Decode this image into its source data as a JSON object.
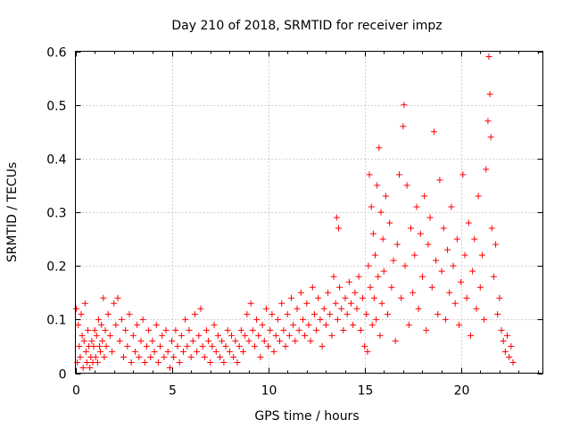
{
  "chart_data": {
    "type": "scatter",
    "title": "Day 210 of 2018, SRMTID for receiver impz",
    "xlabel": "GPS time / hours",
    "ylabel": "SRMTID / TECUs",
    "xlim": [
      0,
      24.25
    ],
    "ylim": [
      0,
      0.6
    ],
    "xticks": [
      0,
      5,
      10,
      15,
      20
    ],
    "xtick_labels": [
      "0",
      "5",
      "10",
      "15",
      "20"
    ],
    "yticks": [
      0,
      0.1,
      0.2,
      0.3,
      0.4,
      0.5,
      0.6
    ],
    "ytick_labels": [
      "0",
      "0.1",
      "0.2",
      "0.3",
      "0.4",
      "0.5",
      "0.6"
    ],
    "grid": true,
    "marker": "+",
    "color": "#ff0000",
    "series": [
      {
        "name": "SRMTID",
        "points": [
          [
            0.05,
            0.12
          ],
          [
            0.1,
            0.02
          ],
          [
            0.15,
            0.09
          ],
          [
            0.2,
            0.05
          ],
          [
            0.25,
            0.03
          ],
          [
            0.3,
            0.11
          ],
          [
            0.35,
            0.07
          ],
          [
            0.4,
            0.01
          ],
          [
            0.45,
            0.06
          ],
          [
            0.5,
            0.13
          ],
          [
            0.55,
            0.04
          ],
          [
            0.6,
            0.02
          ],
          [
            0.65,
            0.08
          ],
          [
            0.7,
            0.05
          ],
          [
            0.75,
            0.01
          ],
          [
            0.8,
            0.03
          ],
          [
            0.85,
            0.06
          ],
          [
            0.9,
            0.02
          ],
          [
            0.95,
            0.05
          ],
          [
            1.0,
            0.08
          ],
          [
            1.05,
            0.03
          ],
          [
            1.1,
            0.07
          ],
          [
            1.15,
            0.02
          ],
          [
            1.2,
            0.1
          ],
          [
            1.25,
            0.05
          ],
          [
            1.3,
            0.04
          ],
          [
            1.35,
            0.09
          ],
          [
            1.4,
            0.06
          ],
          [
            1.45,
            0.14
          ],
          [
            1.5,
            0.03
          ],
          [
            1.55,
            0.08
          ],
          [
            1.6,
            0.05
          ],
          [
            1.7,
            0.11
          ],
          [
            1.8,
            0.07
          ],
          [
            1.9,
            0.04
          ],
          [
            2.0,
            0.13
          ],
          [
            2.1,
            0.09
          ],
          [
            2.2,
            0.14
          ],
          [
            2.3,
            0.06
          ],
          [
            2.4,
            0.1
          ],
          [
            2.5,
            0.03
          ],
          [
            2.6,
            0.08
          ],
          [
            2.7,
            0.05
          ],
          [
            2.8,
            0.11
          ],
          [
            2.9,
            0.02
          ],
          [
            3.0,
            0.07
          ],
          [
            3.1,
            0.04
          ],
          [
            3.2,
            0.09
          ],
          [
            3.3,
            0.03
          ],
          [
            3.4,
            0.06
          ],
          [
            3.5,
            0.1
          ],
          [
            3.6,
            0.02
          ],
          [
            3.7,
            0.05
          ],
          [
            3.8,
            0.08
          ],
          [
            3.9,
            0.03
          ],
          [
            4.0,
            0.06
          ],
          [
            4.1,
            0.04
          ],
          [
            4.2,
            0.09
          ],
          [
            4.3,
            0.02
          ],
          [
            4.4,
            0.05
          ],
          [
            4.5,
            0.07
          ],
          [
            4.6,
            0.03
          ],
          [
            4.7,
            0.08
          ],
          [
            4.8,
            0.04
          ],
          [
            4.9,
            0.01
          ],
          [
            5.0,
            0.06
          ],
          [
            5.1,
            0.03
          ],
          [
            5.2,
            0.08
          ],
          [
            5.3,
            0.05
          ],
          [
            5.4,
            0.02
          ],
          [
            5.5,
            0.07
          ],
          [
            5.6,
            0.04
          ],
          [
            5.7,
            0.1
          ],
          [
            5.8,
            0.05
          ],
          [
            5.9,
            0.08
          ],
          [
            6.0,
            0.03
          ],
          [
            6.1,
            0.06
          ],
          [
            6.2,
            0.11
          ],
          [
            6.3,
            0.04
          ],
          [
            6.4,
            0.07
          ],
          [
            6.5,
            0.12
          ],
          [
            6.6,
            0.05
          ],
          [
            6.7,
            0.03
          ],
          [
            6.8,
            0.08
          ],
          [
            6.9,
            0.06
          ],
          [
            7.0,
            0.02
          ],
          [
            7.1,
            0.05
          ],
          [
            7.2,
            0.09
          ],
          [
            7.3,
            0.04
          ],
          [
            7.4,
            0.07
          ],
          [
            7.5,
            0.03
          ],
          [
            7.6,
            0.06
          ],
          [
            7.7,
            0.02
          ],
          [
            7.8,
            0.05
          ],
          [
            7.9,
            0.08
          ],
          [
            8.0,
            0.04
          ],
          [
            8.1,
            0.07
          ],
          [
            8.2,
            0.03
          ],
          [
            8.3,
            0.06
          ],
          [
            8.4,
            0.02
          ],
          [
            8.5,
            0.05
          ],
          [
            8.6,
            0.08
          ],
          [
            8.7,
            0.04
          ],
          [
            8.8,
            0.07
          ],
          [
            8.9,
            0.11
          ],
          [
            9.0,
            0.06
          ],
          [
            9.1,
            0.13
          ],
          [
            9.2,
            0.08
          ],
          [
            9.3,
            0.05
          ],
          [
            9.4,
            0.1
          ],
          [
            9.5,
            0.07
          ],
          [
            9.6,
            0.03
          ],
          [
            9.7,
            0.09
          ],
          [
            9.8,
            0.06
          ],
          [
            9.9,
            0.12
          ],
          [
            10.0,
            0.05
          ],
          [
            10.1,
            0.08
          ],
          [
            10.2,
            0.11
          ],
          [
            10.3,
            0.04
          ],
          [
            10.4,
            0.07
          ],
          [
            10.5,
            0.1
          ],
          [
            10.6,
            0.06
          ],
          [
            10.7,
            0.13
          ],
          [
            10.8,
            0.08
          ],
          [
            10.9,
            0.05
          ],
          [
            11.0,
            0.11
          ],
          [
            11.1,
            0.07
          ],
          [
            11.2,
            0.14
          ],
          [
            11.3,
            0.09
          ],
          [
            11.4,
            0.06
          ],
          [
            11.5,
            0.12
          ],
          [
            11.6,
            0.08
          ],
          [
            11.7,
            0.15
          ],
          [
            11.8,
            0.1
          ],
          [
            11.9,
            0.07
          ],
          [
            12.0,
            0.13
          ],
          [
            12.1,
            0.09
          ],
          [
            12.2,
            0.06
          ],
          [
            12.3,
            0.16
          ],
          [
            12.4,
            0.11
          ],
          [
            12.5,
            0.08
          ],
          [
            12.6,
            0.14
          ],
          [
            12.7,
            0.1
          ],
          [
            12.8,
            0.05
          ],
          [
            12.9,
            0.12
          ],
          [
            13.0,
            0.09
          ],
          [
            13.1,
            0.15
          ],
          [
            13.2,
            0.11
          ],
          [
            13.3,
            0.07
          ],
          [
            13.4,
            0.18
          ],
          [
            13.5,
            0.13
          ],
          [
            13.55,
            0.29
          ],
          [
            13.6,
            0.1
          ],
          [
            13.65,
            0.27
          ],
          [
            13.7,
            0.16
          ],
          [
            13.8,
            0.12
          ],
          [
            13.9,
            0.08
          ],
          [
            14.0,
            0.14
          ],
          [
            14.1,
            0.11
          ],
          [
            14.2,
            0.17
          ],
          [
            14.3,
            0.13
          ],
          [
            14.4,
            0.09
          ],
          [
            14.5,
            0.15
          ],
          [
            14.6,
            0.12
          ],
          [
            14.7,
            0.18
          ],
          [
            14.8,
            0.08
          ],
          [
            14.9,
            0.14
          ],
          [
            15.0,
            0.05
          ],
          [
            15.1,
            0.11
          ],
          [
            15.15,
            0.04
          ],
          [
            15.2,
            0.2
          ],
          [
            15.25,
            0.37
          ],
          [
            15.3,
            0.16
          ],
          [
            15.35,
            0.31
          ],
          [
            15.4,
            0.09
          ],
          [
            15.45,
            0.26
          ],
          [
            15.5,
            0.14
          ],
          [
            15.55,
            0.22
          ],
          [
            15.6,
            0.1
          ],
          [
            15.65,
            0.35
          ],
          [
            15.7,
            0.18
          ],
          [
            15.75,
            0.42
          ],
          [
            15.8,
            0.07
          ],
          [
            15.85,
            0.3
          ],
          [
            15.9,
            0.13
          ],
          [
            15.95,
            0.25
          ],
          [
            16.0,
            0.19
          ],
          [
            16.1,
            0.33
          ],
          [
            16.2,
            0.11
          ],
          [
            16.3,
            0.28
          ],
          [
            16.4,
            0.16
          ],
          [
            16.5,
            0.21
          ],
          [
            16.6,
            0.06
          ],
          [
            16.7,
            0.24
          ],
          [
            16.8,
            0.37
          ],
          [
            16.9,
            0.14
          ],
          [
            17.0,
            0.46
          ],
          [
            17.05,
            0.5
          ],
          [
            17.1,
            0.2
          ],
          [
            17.2,
            0.35
          ],
          [
            17.3,
            0.09
          ],
          [
            17.4,
            0.27
          ],
          [
            17.5,
            0.15
          ],
          [
            17.6,
            0.22
          ],
          [
            17.7,
            0.31
          ],
          [
            17.8,
            0.12
          ],
          [
            17.9,
            0.26
          ],
          [
            18.0,
            0.18
          ],
          [
            18.1,
            0.33
          ],
          [
            18.2,
            0.08
          ],
          [
            18.3,
            0.24
          ],
          [
            18.4,
            0.29
          ],
          [
            18.5,
            0.16
          ],
          [
            18.6,
            0.45
          ],
          [
            18.7,
            0.21
          ],
          [
            18.8,
            0.11
          ],
          [
            18.9,
            0.36
          ],
          [
            19.0,
            0.19
          ],
          [
            19.1,
            0.27
          ],
          [
            19.2,
            0.1
          ],
          [
            19.3,
            0.23
          ],
          [
            19.4,
            0.15
          ],
          [
            19.5,
            0.31
          ],
          [
            19.6,
            0.2
          ],
          [
            19.7,
            0.13
          ],
          [
            19.8,
            0.25
          ],
          [
            19.9,
            0.09
          ],
          [
            20.0,
            0.17
          ],
          [
            20.1,
            0.37
          ],
          [
            20.2,
            0.22
          ],
          [
            20.3,
            0.14
          ],
          [
            20.4,
            0.28
          ],
          [
            20.5,
            0.07
          ],
          [
            20.6,
            0.19
          ],
          [
            20.7,
            0.25
          ],
          [
            20.8,
            0.12
          ],
          [
            20.9,
            0.33
          ],
          [
            21.0,
            0.16
          ],
          [
            21.1,
            0.22
          ],
          [
            21.2,
            0.1
          ],
          [
            21.3,
            0.38
          ],
          [
            21.4,
            0.47
          ],
          [
            21.45,
            0.59
          ],
          [
            21.5,
            0.52
          ],
          [
            21.55,
            0.44
          ],
          [
            21.6,
            0.27
          ],
          [
            21.7,
            0.18
          ],
          [
            21.8,
            0.24
          ],
          [
            21.9,
            0.11
          ],
          [
            22.0,
            0.14
          ],
          [
            22.1,
            0.08
          ],
          [
            22.2,
            0.06
          ],
          [
            22.3,
            0.04
          ],
          [
            22.4,
            0.07
          ],
          [
            22.5,
            0.03
          ],
          [
            22.6,
            0.05
          ],
          [
            22.7,
            0.02
          ]
        ]
      }
    ]
  }
}
